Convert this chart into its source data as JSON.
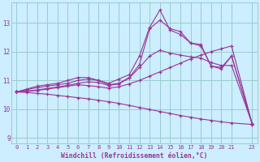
{
  "xlabel": "Windchill (Refroidissement éolien,°C)",
  "bg_color": "#cceeff",
  "grid_color": "#99cccc",
  "line_color": "#993399",
  "xlim": [
    -0.5,
    23.5
  ],
  "ylim": [
    8.8,
    13.7
  ],
  "xticks": [
    0,
    1,
    2,
    3,
    4,
    5,
    6,
    7,
    8,
    9,
    10,
    11,
    12,
    13,
    14,
    15,
    16,
    17,
    18,
    19,
    20,
    21,
    23
  ],
  "yticks": [
    9,
    10,
    11,
    12,
    13
  ],
  "lines": [
    {
      "x": [
        0,
        1,
        2,
        3,
        4,
        5,
        6,
        7,
        8,
        9,
        10,
        11,
        12,
        13,
        14,
        15,
        16,
        17,
        18,
        19,
        20,
        21,
        23
      ],
      "y": [
        10.6,
        10.7,
        10.8,
        10.85,
        10.9,
        11.0,
        11.1,
        11.1,
        11.0,
        10.9,
        11.05,
        11.2,
        11.85,
        12.85,
        13.45,
        12.75,
        12.6,
        12.3,
        12.25,
        11.5,
        11.45,
        11.85,
        9.5
      ]
    },
    {
      "x": [
        0,
        1,
        2,
        3,
        4,
        5,
        6,
        7,
        8,
        9,
        10,
        11,
        12,
        13,
        14,
        15,
        16,
        17,
        18,
        19,
        20,
        21,
        23
      ],
      "y": [
        10.6,
        10.68,
        10.75,
        10.8,
        10.85,
        10.9,
        11.0,
        11.05,
        11.0,
        10.85,
        10.9,
        11.1,
        11.55,
        12.8,
        13.1,
        12.8,
        12.7,
        12.3,
        12.2,
        11.5,
        11.4,
        11.85,
        9.5
      ]
    },
    {
      "x": [
        0,
        1,
        2,
        3,
        4,
        5,
        6,
        7,
        8,
        9,
        10,
        11,
        12,
        13,
        14,
        15,
        16,
        17,
        18,
        19,
        20,
        21,
        23
      ],
      "y": [
        10.6,
        10.63,
        10.67,
        10.72,
        10.77,
        10.83,
        10.9,
        10.95,
        10.93,
        10.82,
        10.88,
        11.08,
        11.45,
        11.85,
        12.05,
        11.95,
        11.88,
        11.82,
        11.78,
        11.62,
        11.52,
        11.52,
        9.5
      ]
    },
    {
      "x": [
        0,
        1,
        2,
        3,
        4,
        5,
        6,
        7,
        8,
        9,
        10,
        11,
        12,
        13,
        14,
        15,
        16,
        17,
        18,
        19,
        20,
        21,
        23
      ],
      "y": [
        10.6,
        10.62,
        10.65,
        10.7,
        10.75,
        10.8,
        10.85,
        10.82,
        10.78,
        10.73,
        10.78,
        10.88,
        11.0,
        11.15,
        11.3,
        11.45,
        11.6,
        11.75,
        11.88,
        12.0,
        12.1,
        12.2,
        9.5
      ]
    },
    {
      "x": [
        0,
        1,
        2,
        3,
        4,
        5,
        6,
        7,
        8,
        9,
        10,
        11,
        12,
        13,
        14,
        15,
        16,
        17,
        18,
        19,
        20,
        21,
        23
      ],
      "y": [
        10.6,
        10.58,
        10.55,
        10.52,
        10.48,
        10.44,
        10.4,
        10.36,
        10.31,
        10.26,
        10.2,
        10.13,
        10.06,
        9.99,
        9.92,
        9.85,
        9.78,
        9.72,
        9.66,
        9.61,
        9.56,
        9.52,
        9.47
      ]
    }
  ]
}
